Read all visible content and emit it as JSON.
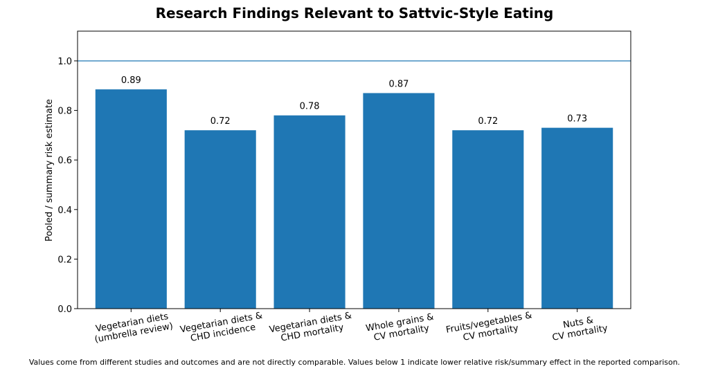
{
  "chart_data": {
    "type": "bar",
    "title": "Research Findings Relevant to Sattvic-Style Eating",
    "xlabel": "",
    "ylabel": "Pooled / summary risk estimate",
    "categories": [
      [
        "Vegetarian diets",
        "(umbrella review)"
      ],
      [
        "Vegetarian diets &",
        "CHD incidence"
      ],
      [
        "Vegetarian diets &",
        "CHD mortality"
      ],
      [
        "Whole grains &",
        "CV mortality"
      ],
      [
        "Fruits/vegetables &",
        "CV mortality"
      ],
      [
        "Nuts &",
        "CV mortality"
      ]
    ],
    "values": [
      0.885,
      0.72,
      0.78,
      0.87,
      0.72,
      0.73
    ],
    "data_labels": [
      "0.89",
      "0.72",
      "0.78",
      "0.87",
      "0.72",
      "0.73"
    ],
    "ylim": [
      0,
      1.12
    ],
    "yticks": [
      0.0,
      0.2,
      0.4,
      0.6,
      0.8,
      1.0
    ],
    "ytick_labels": [
      "0.0",
      "0.2",
      "0.4",
      "0.6",
      "0.8",
      "1.0"
    ],
    "reference_line": 1.0,
    "grid": false,
    "bar_color": "#1f77b4",
    "reference_line_color": "#1f77b4",
    "footnote": "Values come from different studies and outcomes and are not directly comparable. Values below 1 indicate lower relative risk/summary effect in the reported comparison."
  }
}
